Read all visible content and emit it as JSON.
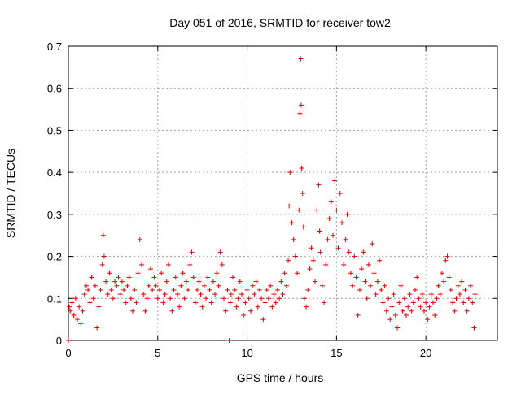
{
  "chart_data": {
    "type": "scatter",
    "title": "Day 051 of 2016, SRMTID for receiver tow2",
    "xlabel": "GPS time / hours",
    "ylabel": "SRMTID / TECUs",
    "xlim": [
      0,
      24
    ],
    "ylim": [
      0,
      0.7
    ],
    "xticks": [
      0,
      5,
      10,
      15,
      20
    ],
    "yticks": [
      0,
      0.1,
      0.2,
      0.3,
      0.4,
      0.5,
      0.6,
      0.7
    ],
    "grid": true,
    "marker": "+",
    "color": "#e00000",
    "series": [
      {
        "name": "tow2",
        "points": [
          [
            0.0,
            0.0
          ],
          [
            0.05,
            0.08
          ],
          [
            0.1,
            0.07
          ],
          [
            0.2,
            0.09
          ],
          [
            0.3,
            0.06
          ],
          [
            0.4,
            0.1
          ],
          [
            0.5,
            0.05
          ],
          [
            0.6,
            0.08
          ],
          [
            0.7,
            0.04
          ],
          [
            0.8,
            0.07
          ],
          [
            0.9,
            0.11
          ],
          [
            1.0,
            0.13
          ],
          [
            1.1,
            0.12
          ],
          [
            1.2,
            0.09
          ],
          [
            1.3,
            0.15
          ],
          [
            1.4,
            0.1
          ],
          [
            1.5,
            0.13
          ],
          [
            1.6,
            0.03
          ],
          [
            1.7,
            0.08
          ],
          [
            1.8,
            0.12
          ],
          [
            1.9,
            0.18
          ],
          [
            1.95,
            0.25
          ],
          [
            2.0,
            0.2
          ],
          [
            2.1,
            0.14
          ],
          [
            2.2,
            0.11
          ],
          [
            2.3,
            0.16
          ],
          [
            2.4,
            0.12
          ],
          [
            2.5,
            0.1
          ],
          [
            2.6,
            0.14
          ],
          [
            2.7,
            0.13
          ],
          [
            2.8,
            0.15
          ],
          [
            2.9,
            0.11
          ],
          [
            3.0,
            0.14
          ],
          [
            3.1,
            0.12
          ],
          [
            3.2,
            0.09
          ],
          [
            3.3,
            0.13
          ],
          [
            3.4,
            0.15
          ],
          [
            3.5,
            0.1
          ],
          [
            3.6,
            0.07
          ],
          [
            3.7,
            0.12
          ],
          [
            3.8,
            0.09
          ],
          [
            3.9,
            0.16
          ],
          [
            4.0,
            0.24
          ],
          [
            4.1,
            0.18
          ],
          [
            4.2,
            0.11
          ],
          [
            4.3,
            0.07
          ],
          [
            4.4,
            0.1
          ],
          [
            4.5,
            0.13
          ],
          [
            4.6,
            0.17
          ],
          [
            4.7,
            0.12
          ],
          [
            4.8,
            0.15
          ],
          [
            4.9,
            0.13
          ],
          [
            5.0,
            0.1
          ],
          [
            5.1,
            0.12
          ],
          [
            5.2,
            0.16
          ],
          [
            5.3,
            0.09
          ],
          [
            5.4,
            0.11
          ],
          [
            5.5,
            0.14
          ],
          [
            5.6,
            0.18
          ],
          [
            5.7,
            0.1
          ],
          [
            5.8,
            0.07
          ],
          [
            5.9,
            0.12
          ],
          [
            6.0,
            0.15
          ],
          [
            6.1,
            0.11
          ],
          [
            6.2,
            0.08
          ],
          [
            6.3,
            0.13
          ],
          [
            6.4,
            0.16
          ],
          [
            6.5,
            0.1
          ],
          [
            6.6,
            0.14
          ],
          [
            6.7,
            0.12
          ],
          [
            6.8,
            0.18
          ],
          [
            6.9,
            0.21
          ],
          [
            7.0,
            0.15
          ],
          [
            7.1,
            0.09
          ],
          [
            7.2,
            0.12
          ],
          [
            7.3,
            0.14
          ],
          [
            7.4,
            0.11
          ],
          [
            7.5,
            0.08
          ],
          [
            7.6,
            0.13
          ],
          [
            7.7,
            0.1
          ],
          [
            7.8,
            0.15
          ],
          [
            7.9,
            0.12
          ],
          [
            8.0,
            0.09
          ],
          [
            8.1,
            0.14
          ],
          [
            8.2,
            0.11
          ],
          [
            8.3,
            0.16
          ],
          [
            8.4,
            0.13
          ],
          [
            8.5,
            0.21
          ],
          [
            8.6,
            0.18
          ],
          [
            8.7,
            0.1
          ],
          [
            8.8,
            0.07
          ],
          [
            8.9,
            0.12
          ],
          [
            9.0,
            0.0
          ],
          [
            9.05,
            0.09
          ],
          [
            9.1,
            0.11
          ],
          [
            9.2,
            0.15
          ],
          [
            9.3,
            0.12
          ],
          [
            9.4,
            0.08
          ],
          [
            9.5,
            0.1
          ],
          [
            9.6,
            0.14
          ],
          [
            9.7,
            0.11
          ],
          [
            9.8,
            0.06
          ],
          [
            9.9,
            0.09
          ],
          [
            10.0,
            0.12
          ],
          [
            10.1,
            0.1
          ],
          [
            10.2,
            0.07
          ],
          [
            10.3,
            0.13
          ],
          [
            10.4,
            0.11
          ],
          [
            10.5,
            0.14
          ],
          [
            10.6,
            0.08
          ],
          [
            10.7,
            0.12
          ],
          [
            10.8,
            0.1
          ],
          [
            10.9,
            0.05
          ],
          [
            11.0,
            0.09
          ],
          [
            11.1,
            0.12
          ],
          [
            11.2,
            0.1
          ],
          [
            11.3,
            0.13
          ],
          [
            11.4,
            0.08
          ],
          [
            11.5,
            0.11
          ],
          [
            11.6,
            0.09
          ],
          [
            11.7,
            0.12
          ],
          [
            11.8,
            0.1
          ],
          [
            11.9,
            0.14
          ],
          [
            12.0,
            0.11
          ],
          [
            12.1,
            0.16
          ],
          [
            12.2,
            0.13
          ],
          [
            12.3,
            0.19
          ],
          [
            12.35,
            0.32
          ],
          [
            12.4,
            0.4
          ],
          [
            12.5,
            0.28
          ],
          [
            12.6,
            0.24
          ],
          [
            12.7,
            0.2
          ],
          [
            12.8,
            0.16
          ],
          [
            12.9,
            0.31
          ],
          [
            12.95,
            0.54
          ],
          [
            13.0,
            0.67
          ],
          [
            13.02,
            0.56
          ],
          [
            13.05,
            0.41
          ],
          [
            13.1,
            0.35
          ],
          [
            13.15,
            0.27
          ],
          [
            13.2,
            0.1
          ],
          [
            13.3,
            0.08
          ],
          [
            13.4,
            0.12
          ],
          [
            13.5,
            0.17
          ],
          [
            13.6,
            0.22
          ],
          [
            13.7,
            0.19
          ],
          [
            13.8,
            0.14
          ],
          [
            13.9,
            0.31
          ],
          [
            14.0,
            0.37
          ],
          [
            14.05,
            0.26
          ],
          [
            14.1,
            0.21
          ],
          [
            14.2,
            0.13
          ],
          [
            14.3,
            0.09
          ],
          [
            14.4,
            0.18
          ],
          [
            14.5,
            0.24
          ],
          [
            14.6,
            0.29
          ],
          [
            14.7,
            0.33
          ],
          [
            14.8,
            0.25
          ],
          [
            14.9,
            0.38
          ],
          [
            15.0,
            0.31
          ],
          [
            15.1,
            0.22
          ],
          [
            15.2,
            0.35
          ],
          [
            15.3,
            0.28
          ],
          [
            15.4,
            0.18
          ],
          [
            15.5,
            0.24
          ],
          [
            15.6,
            0.3
          ],
          [
            15.7,
            0.21
          ],
          [
            15.8,
            0.16
          ],
          [
            15.9,
            0.13
          ],
          [
            16.0,
            0.2
          ],
          [
            16.1,
            0.15
          ],
          [
            16.2,
            0.06
          ],
          [
            16.3,
            0.12
          ],
          [
            16.4,
            0.17
          ],
          [
            16.5,
            0.21
          ],
          [
            16.6,
            0.14
          ],
          [
            16.7,
            0.1
          ],
          [
            16.8,
            0.18
          ],
          [
            16.9,
            0.13
          ],
          [
            17.0,
            0.23
          ],
          [
            17.1,
            0.16
          ],
          [
            17.2,
            0.11
          ],
          [
            17.3,
            0.14
          ],
          [
            17.4,
            0.19
          ],
          [
            17.5,
            0.12
          ],
          [
            17.6,
            0.09
          ],
          [
            17.7,
            0.13
          ],
          [
            17.8,
            0.07
          ],
          [
            17.9,
            0.1
          ],
          [
            18.0,
            0.05
          ],
          [
            18.1,
            0.08
          ],
          [
            18.2,
            0.11
          ],
          [
            18.3,
            0.06
          ],
          [
            18.4,
            0.03
          ],
          [
            18.5,
            0.09
          ],
          [
            18.6,
            0.13
          ],
          [
            18.7,
            0.07
          ],
          [
            18.8,
            0.1
          ],
          [
            18.9,
            0.06
          ],
          [
            19.0,
            0.08
          ],
          [
            19.1,
            0.11
          ],
          [
            19.2,
            0.07
          ],
          [
            19.3,
            0.09
          ],
          [
            19.4,
            0.12
          ],
          [
            19.5,
            0.15
          ],
          [
            19.6,
            0.1
          ],
          [
            19.7,
            0.08
          ],
          [
            19.8,
            0.11
          ],
          [
            19.9,
            0.07
          ],
          [
            20.0,
            0.09
          ],
          [
            20.1,
            0.05
          ],
          [
            20.2,
            0.08
          ],
          [
            20.3,
            0.11
          ],
          [
            20.4,
            0.09
          ],
          [
            20.5,
            0.06
          ],
          [
            20.6,
            0.1
          ],
          [
            20.7,
            0.13
          ],
          [
            20.8,
            0.11
          ],
          [
            20.9,
            0.16
          ],
          [
            21.0,
            0.14
          ],
          [
            21.1,
            0.19
          ],
          [
            21.2,
            0.2
          ],
          [
            21.3,
            0.15
          ],
          [
            21.4,
            0.12
          ],
          [
            21.5,
            0.09
          ],
          [
            21.6,
            0.07
          ],
          [
            21.7,
            0.1
          ],
          [
            21.8,
            0.13
          ],
          [
            21.9,
            0.11
          ],
          [
            22.0,
            0.14
          ],
          [
            22.1,
            0.09
          ],
          [
            22.2,
            0.12
          ],
          [
            22.3,
            0.07
          ],
          [
            22.4,
            0.1
          ],
          [
            22.5,
            0.13
          ],
          [
            22.6,
            0.09
          ],
          [
            22.7,
            0.03
          ],
          [
            22.75,
            0.11
          ]
        ]
      }
    ]
  }
}
